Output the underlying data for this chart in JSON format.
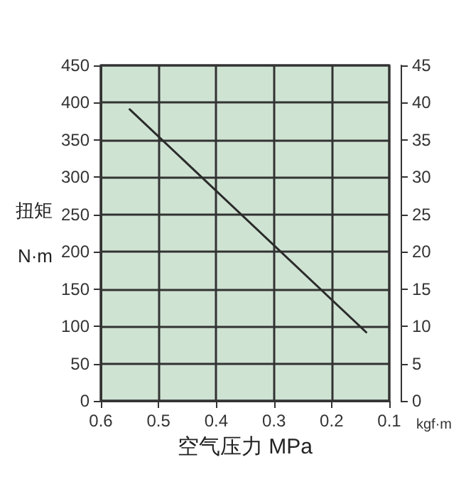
{
  "chart_data": {
    "type": "line",
    "xlabel": "空气压力 MPa",
    "ylabel": "扭矩 N·m",
    "y2label": "kgf·m",
    "x": [
      0.55,
      0.14
    ],
    "series": [
      {
        "color": "#2b2b2b",
        "values": [
          391,
          92
        ]
      }
    ],
    "xlim": [
      0.6,
      0.1
    ],
    "xticks": [
      0.6,
      0.5,
      0.4,
      0.3,
      0.2,
      0.1
    ],
    "ylim": [
      0,
      450
    ],
    "yticks": [
      0,
      50,
      100,
      150,
      200,
      250,
      300,
      350,
      400,
      450
    ],
    "y2lim": [
      0,
      45
    ],
    "y2ticks": [
      0,
      5,
      10,
      15,
      20,
      25,
      30,
      35,
      40,
      45
    ],
    "grid": true,
    "marker": "none",
    "line_style": "solid"
  }
}
